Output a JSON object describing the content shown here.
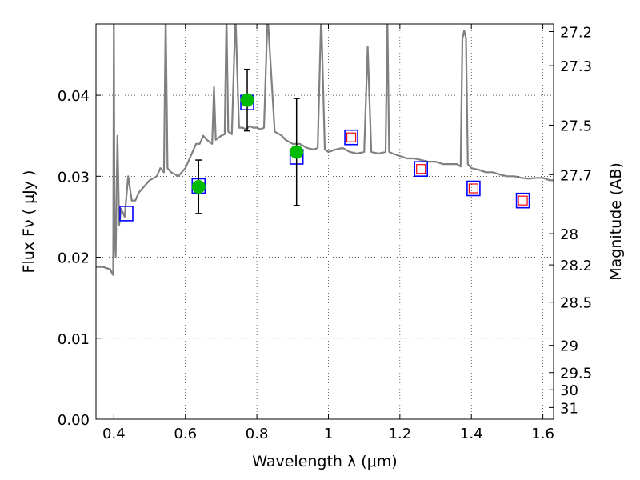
{
  "chart_data": {
    "type": "scatter",
    "xlabel": "Wavelength  λ (μm)",
    "ylabel": "Flux  Fν  ( μJy )",
    "y2label": "Magnitude (AB)",
    "xlim": [
      0.35,
      1.63
    ],
    "ylim": [
      0.0,
      0.0488
    ],
    "grid": true,
    "xticks": [
      0.4,
      0.6,
      0.8,
      1.0,
      1.2,
      1.4,
      1.6
    ],
    "xtick_labels": [
      "0.4",
      "0.6",
      "0.8",
      "1",
      "1.2",
      "1.4",
      "1.6"
    ],
    "yticks": [
      0.0,
      0.01,
      0.02,
      0.03,
      0.04
    ],
    "ytick_labels": [
      "0.00",
      "0.01",
      "0.02",
      "0.03",
      "0.04"
    ],
    "y2ticks": [
      27.2,
      27.3,
      27.5,
      27.7,
      28,
      28.2,
      28.5,
      29,
      29.5,
      30,
      31
    ],
    "y2tick_labels": [
      "27.2",
      "27.3",
      "27.5",
      "27.7",
      "28",
      "28.2",
      "28.5",
      "29",
      "29.5",
      "30",
      "31"
    ],
    "colors": {
      "spectrum": "#808080",
      "model_box": "#0000ff",
      "inner_box": "#ff0000",
      "detection": "#00bb00",
      "errorbar": "#000000"
    },
    "spectrum": {
      "x": [
        0.35,
        0.37,
        0.39,
        0.395,
        0.398,
        0.4,
        0.402,
        0.405,
        0.41,
        0.415,
        0.42,
        0.43,
        0.44,
        0.45,
        0.46,
        0.47,
        0.48,
        0.49,
        0.5,
        0.52,
        0.53,
        0.54,
        0.545,
        0.55,
        0.56,
        0.58,
        0.6,
        0.62,
        0.63,
        0.64,
        0.65,
        0.66,
        0.675,
        0.68,
        0.685,
        0.7,
        0.71,
        0.715,
        0.72,
        0.73,
        0.74,
        0.75,
        0.76,
        0.77,
        0.78,
        0.79,
        0.8,
        0.81,
        0.82,
        0.83,
        0.85,
        0.87,
        0.88,
        0.9,
        0.92,
        0.94,
        0.96,
        0.97,
        0.98,
        0.99,
        1.0,
        1.02,
        1.04,
        1.06,
        1.08,
        1.1,
        1.11,
        1.12,
        1.14,
        1.16,
        1.165,
        1.17,
        1.18,
        1.2,
        1.22,
        1.24,
        1.26,
        1.28,
        1.3,
        1.32,
        1.34,
        1.36,
        1.37,
        1.375,
        1.38,
        1.385,
        1.39,
        1.4,
        1.42,
        1.44,
        1.46,
        1.48,
        1.5,
        1.52,
        1.54,
        1.56,
        1.58,
        1.6,
        1.62,
        1.63
      ],
      "y": [
        0.0188,
        0.0188,
        0.0185,
        0.018,
        0.0178,
        0.05,
        0.023,
        0.02,
        0.035,
        0.024,
        0.026,
        0.025,
        0.03,
        0.027,
        0.027,
        0.028,
        0.0285,
        0.029,
        0.0295,
        0.03,
        0.031,
        0.0305,
        0.05,
        0.031,
        0.0305,
        0.03,
        0.031,
        0.033,
        0.034,
        0.034,
        0.035,
        0.0345,
        0.034,
        0.041,
        0.0345,
        0.035,
        0.0352,
        0.05,
        0.0355,
        0.0352,
        0.05,
        0.036,
        0.036,
        0.0358,
        0.0362,
        0.036,
        0.036,
        0.0358,
        0.036,
        0.05,
        0.0355,
        0.035,
        0.0345,
        0.034,
        0.034,
        0.0335,
        0.0333,
        0.0335,
        0.05,
        0.0333,
        0.033,
        0.0333,
        0.0335,
        0.033,
        0.0328,
        0.033,
        0.046,
        0.033,
        0.0328,
        0.033,
        0.05,
        0.033,
        0.0328,
        0.0325,
        0.0322,
        0.0322,
        0.032,
        0.0318,
        0.0318,
        0.0315,
        0.0315,
        0.0315,
        0.0312,
        0.047,
        0.048,
        0.047,
        0.0315,
        0.031,
        0.0308,
        0.0305,
        0.0305,
        0.0302,
        0.03,
        0.03,
        0.0298,
        0.0297,
        0.0298,
        0.0298,
        0.0295,
        0.0295
      ]
    },
    "model_points": {
      "x": [
        0.435,
        0.637,
        0.773,
        0.911,
        1.064,
        1.259,
        1.406,
        1.544
      ],
      "y": [
        0.0254,
        0.0288,
        0.0391,
        0.0324,
        0.0348,
        0.0309,
        0.0285,
        0.027
      ]
    },
    "upper_limit_points": {
      "x": [
        1.064,
        1.259,
        1.406,
        1.544
      ],
      "y": [
        0.0348,
        0.0309,
        0.0285,
        0.027
      ]
    },
    "detections": {
      "x": [
        0.637,
        0.773,
        0.911
      ],
      "y": [
        0.0287,
        0.0394,
        0.033
      ],
      "yerr": [
        0.0033,
        0.0038,
        0.0066
      ]
    }
  }
}
